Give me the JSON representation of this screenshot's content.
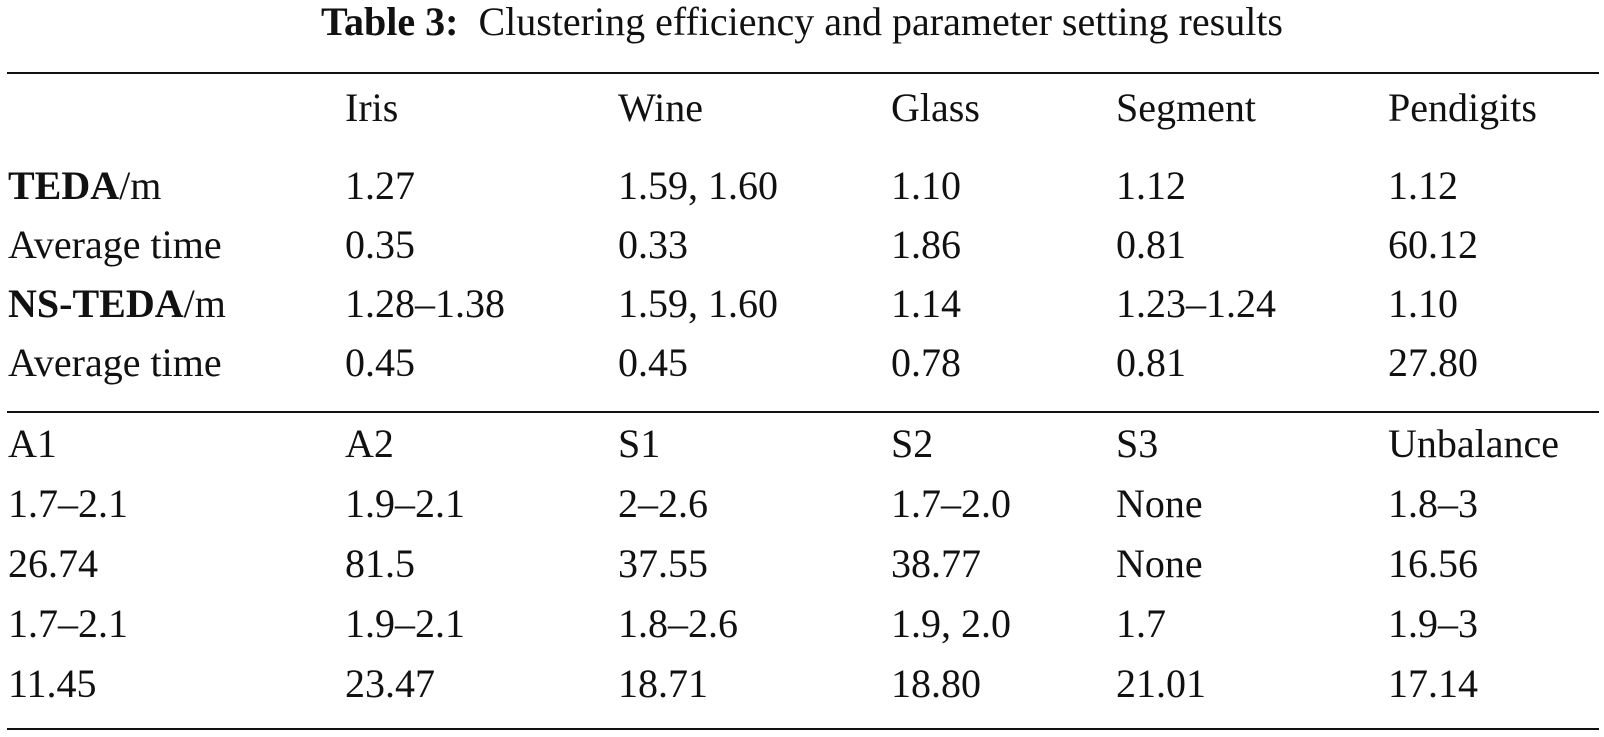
{
  "caption": {
    "label": "Table 3:",
    "text": "Clustering efficiency and parameter setting results"
  },
  "table1": {
    "header": [
      "Iris",
      "Wine",
      "Glass",
      "Segment",
      "Pendigits"
    ],
    "rows": [
      {
        "label_bold": "TEDA",
        "label_suffix": "/m",
        "cells": [
          "1.27",
          "1.59, 1.60",
          "1.10",
          "1.12",
          "1.12"
        ]
      },
      {
        "label": "Average time",
        "cells": [
          "0.35",
          "0.33",
          "1.86",
          "0.81",
          "60.12"
        ]
      },
      {
        "label_bold": "NS-TEDA",
        "label_suffix": "/m",
        "cells": [
          "1.28–1.38",
          "1.59, 1.60",
          "1.14",
          "1.23–1.24",
          "1.10"
        ]
      },
      {
        "label": "Average time",
        "cells": [
          "0.45",
          "0.45",
          "0.78",
          "0.81",
          "27.80"
        ]
      }
    ]
  },
  "table2": {
    "header": [
      "A1",
      "A2",
      "S1",
      "S2",
      "S3",
      "Unbalance"
    ],
    "rows": [
      [
        "1.7–2.1",
        "1.9–2.1",
        "2–2.6",
        "1.7–2.0",
        "None",
        "1.8–3"
      ],
      [
        "26.74",
        "81.5",
        "37.55",
        "38.77",
        "None",
        "16.56"
      ],
      [
        "1.7–2.1",
        "1.9–2.1",
        "1.8–2.6",
        "1.9, 2.0",
        "1.7",
        "1.9–3"
      ],
      [
        "11.45",
        "23.47",
        "18.71",
        "18.80",
        "21.01",
        "17.14"
      ]
    ]
  }
}
